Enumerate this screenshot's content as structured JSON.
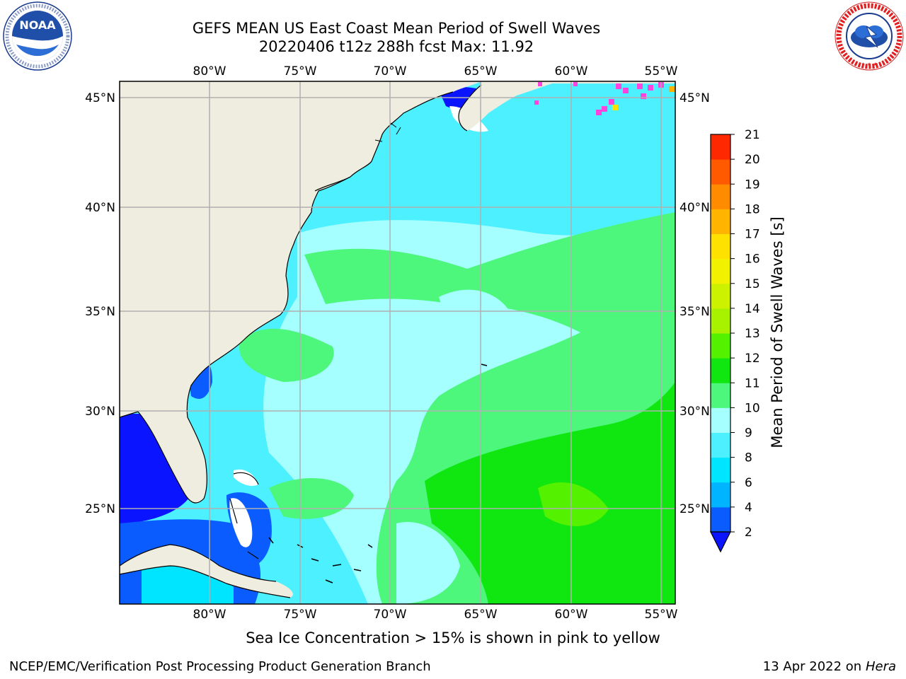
{
  "header": {
    "title_line1": "GEFS MEAN US East Coast Mean Period of Swell Waves",
    "title_line2": "20220406 t12z 288h fcst   Max: 11.92"
  },
  "logos": {
    "left": {
      "icon": "noaa-logo",
      "text": "NOAA",
      "ring_text": "NATIONAL OCEANIC AND ATMOSPHERIC ADMINISTRATION · U.S. DEPARTMENT OF COMMERCE"
    },
    "right": {
      "icon": "nws-logo",
      "ring_text": "NATIONAL WEATHER SERVICE"
    }
  },
  "map": {
    "lon_labels": [
      "80°W",
      "75°W",
      "70°W",
      "65°W",
      "60°W",
      "55°W"
    ],
    "lat_labels": [
      "45°N",
      "40°N",
      "35°N",
      "30°N",
      "25°N"
    ],
    "land_color": "#eeeddf",
    "grid_color": "#b0b0b0"
  },
  "colorbar": {
    "label": "Mean Period of Swell Waves [s]",
    "levels": [
      "2",
      "4",
      "6",
      "8",
      "9",
      "10",
      "11",
      "12",
      "13",
      "14",
      "15",
      "16",
      "17",
      "18",
      "19",
      "20",
      "21"
    ],
    "colors": [
      "#0a5cff",
      "#00b4ff",
      "#00e5ff",
      "#4df0ff",
      "#a6ffff",
      "#4cf77c",
      "#10e610",
      "#54f200",
      "#a8f200",
      "#ccf200",
      "#f2f200",
      "#ffe100",
      "#ffb400",
      "#ff8c00",
      "#ff5a00",
      "#ff2800"
    ],
    "extend_color": "#0a14ff"
  },
  "caption": "Sea Ice Concentration > 15% is shown in pink to yellow",
  "footer": {
    "left": "NCEP/EMC/Verification Post Processing Product Generation Branch",
    "right_prefix": "13 Apr 2022 on ",
    "right_host": "Hera"
  }
}
